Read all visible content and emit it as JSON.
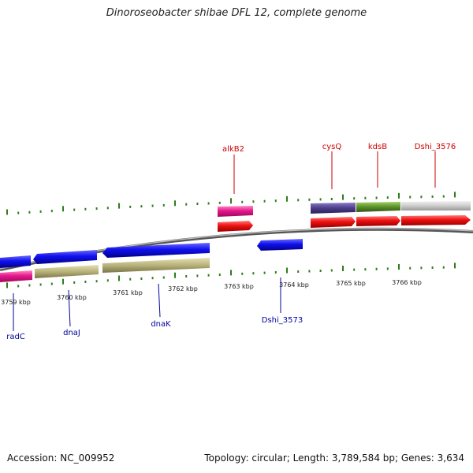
{
  "title": "Dinoroseobacter shibae DFL 12, complete genome",
  "footer": {
    "accession": "Accession: NC_009952",
    "summary": "Topology: circular; Length: 3,789,584 bp; Genes: 3,634"
  },
  "colors": {
    "forward_gene_label": "#cc0000",
    "reverse_gene_label": "#000099",
    "tick": "#2e7d1a",
    "backbone": "#777777",
    "blue": "#0000dd",
    "red": "#ee0000",
    "pink": "#e8188c",
    "olive": "#b8b27a",
    "purple": "#4c3d8a",
    "green": "#5a8f28",
    "grey": "#cccccc"
  },
  "scale_labels": [
    "3759 kbp",
    "3760 kbp",
    "3761 kbp",
    "3762 kbp",
    "3763 kbp",
    "3764 kbp",
    "3765 kbp",
    "3766 kbp"
  ],
  "forward_gene_labels": [
    "alkB2",
    "cysQ",
    "kdsB",
    "Dshi_3576"
  ],
  "reverse_gene_labels": [
    "radC",
    "dnaJ",
    "dnaK",
    "Dshi_3573"
  ]
}
